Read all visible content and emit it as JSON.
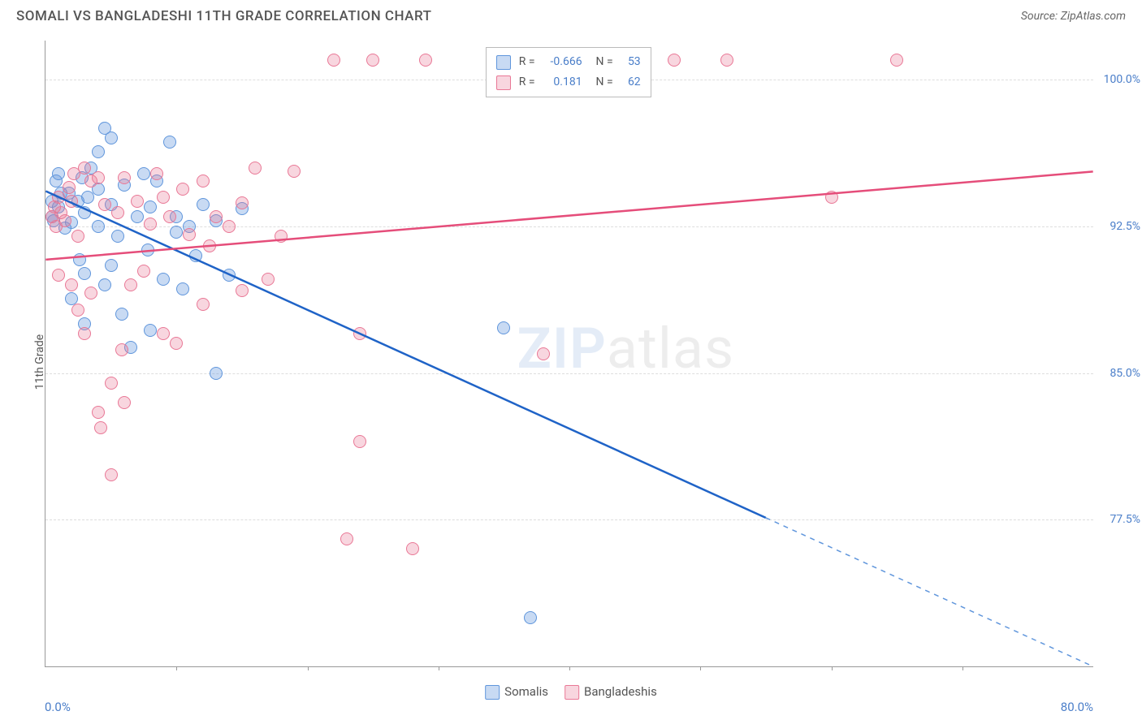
{
  "title": "SOMALI VS BANGLADESHI 11TH GRADE CORRELATION CHART",
  "source": "Source: ZipAtlas.com",
  "y_label": "11th Grade",
  "watermark_bold": "ZIP",
  "watermark_rest": "atlas",
  "chart": {
    "type": "scatter",
    "background_color": "#ffffff",
    "grid_color": "#dddddd",
    "axis_color": "#999999",
    "tick_label_color": "#4a7ec9",
    "x_range": [
      0,
      80
    ],
    "y_range": [
      70,
      102
    ],
    "y_ticks": [
      77.5,
      85.0,
      92.5,
      100.0
    ],
    "y_tick_labels": [
      "77.5%",
      "85.0%",
      "92.5%",
      "100.0%"
    ],
    "x_ticks": [
      10,
      20,
      30,
      40,
      50,
      60,
      70
    ],
    "x_min_label": "0.0%",
    "x_max_label": "80.0%",
    "series": [
      {
        "name": "Somalis",
        "fill_color": "rgba(96,150,220,0.35)",
        "stroke_color": "#6096dc",
        "line_color": "#1f63c7",
        "line_width": 2.5,
        "R": "-0.666",
        "N": "53",
        "trend": {
          "x1": 0,
          "y1": 94.3,
          "x2_solid": 55,
          "y2_solid": 77.6,
          "x2_dash": 80,
          "y2_dash": 70.0
        },
        "points": [
          [
            0.5,
            93.8
          ],
          [
            0.5,
            93.0
          ],
          [
            0.6,
            92.8
          ],
          [
            0.8,
            94.8
          ],
          [
            1,
            95.2
          ],
          [
            1,
            93.5
          ],
          [
            1.2,
            94.2
          ],
          [
            1.5,
            92.4
          ],
          [
            1.8,
            94.2
          ],
          [
            2,
            88.8
          ],
          [
            2,
            92.7
          ],
          [
            2.5,
            93.8
          ],
          [
            2.6,
            90.8
          ],
          [
            2.8,
            95.0
          ],
          [
            3,
            87.5
          ],
          [
            3,
            93.2
          ],
          [
            3,
            90.1
          ],
          [
            3.2,
            94.0
          ],
          [
            3.5,
            95.5
          ],
          [
            4,
            96.3
          ],
          [
            4,
            94.4
          ],
          [
            4,
            92.5
          ],
          [
            4.5,
            97.5
          ],
          [
            4.5,
            89.5
          ],
          [
            5,
            97.0
          ],
          [
            5,
            93.6
          ],
          [
            5,
            90.5
          ],
          [
            5.5,
            92.0
          ],
          [
            5.8,
            88.0
          ],
          [
            6,
            94.6
          ],
          [
            6.5,
            86.3
          ],
          [
            7,
            93.0
          ],
          [
            7.5,
            95.2
          ],
          [
            7.8,
            91.3
          ],
          [
            8,
            87.2
          ],
          [
            8,
            93.5
          ],
          [
            8.5,
            94.8
          ],
          [
            9,
            89.8
          ],
          [
            9.5,
            96.8
          ],
          [
            10,
            93.0
          ],
          [
            10,
            92.2
          ],
          [
            10.5,
            89.3
          ],
          [
            11,
            92.5
          ],
          [
            11.5,
            91.0
          ],
          [
            12,
            93.6
          ],
          [
            13,
            85.0
          ],
          [
            13,
            92.8
          ],
          [
            14,
            90.0
          ],
          [
            15,
            93.4
          ],
          [
            35,
            87.3
          ],
          [
            37,
            72.5
          ]
        ]
      },
      {
        "name": "Bangladeshis",
        "fill_color": "rgba(233,120,150,0.30)",
        "stroke_color": "#e97896",
        "line_color": "#e54d7a",
        "line_width": 2.5,
        "R": "0.181",
        "N": "62",
        "trend": {
          "x1": 0,
          "y1": 90.8,
          "x2_solid": 80,
          "y2_solid": 95.3,
          "x2_dash": 80,
          "y2_dash": 95.3
        },
        "points": [
          [
            0.5,
            93.0
          ],
          [
            0.7,
            93.5
          ],
          [
            0.8,
            92.5
          ],
          [
            1,
            90.0
          ],
          [
            1,
            94.0
          ],
          [
            1.2,
            93.2
          ],
          [
            1.5,
            92.8
          ],
          [
            1.8,
            94.5
          ],
          [
            2,
            89.5
          ],
          [
            2,
            93.8
          ],
          [
            2.2,
            95.2
          ],
          [
            2.5,
            88.2
          ],
          [
            2.5,
            92.0
          ],
          [
            3,
            95.5
          ],
          [
            3,
            87.0
          ],
          [
            3.5,
            94.8
          ],
          [
            3.5,
            89.1
          ],
          [
            4,
            83.0
          ],
          [
            4,
            95.0
          ],
          [
            4.2,
            82.2
          ],
          [
            4.5,
            93.6
          ],
          [
            5,
            79.8
          ],
          [
            5,
            84.5
          ],
          [
            5.5,
            93.2
          ],
          [
            5.8,
            86.2
          ],
          [
            6,
            95.0
          ],
          [
            6,
            83.5
          ],
          [
            6.5,
            89.5
          ],
          [
            7,
            93.8
          ],
          [
            7.5,
            90.2
          ],
          [
            8,
            92.6
          ],
          [
            8.5,
            95.2
          ],
          [
            9,
            87.0
          ],
          [
            9,
            94.0
          ],
          [
            9.5,
            93.0
          ],
          [
            10,
            86.5
          ],
          [
            10.5,
            94.4
          ],
          [
            11,
            92.1
          ],
          [
            12,
            88.5
          ],
          [
            12,
            94.8
          ],
          [
            12.5,
            91.5
          ],
          [
            13,
            93.0
          ],
          [
            14,
            92.5
          ],
          [
            15,
            93.7
          ],
          [
            15,
            89.2
          ],
          [
            16,
            95.5
          ],
          [
            17,
            89.8
          ],
          [
            18,
            92.0
          ],
          [
            19,
            95.3
          ],
          [
            22,
            101.0
          ],
          [
            23,
            76.5
          ],
          [
            24,
            87.0
          ],
          [
            24,
            81.5
          ],
          [
            25,
            101.0
          ],
          [
            28,
            76.0
          ],
          [
            29,
            101.0
          ],
          [
            38,
            86.0
          ],
          [
            48,
            101.0
          ],
          [
            52,
            101.0
          ],
          [
            60,
            94.0
          ],
          [
            65,
            101.0
          ]
        ]
      }
    ]
  },
  "legend": {
    "label_R": "R =",
    "label_N": "N ="
  }
}
